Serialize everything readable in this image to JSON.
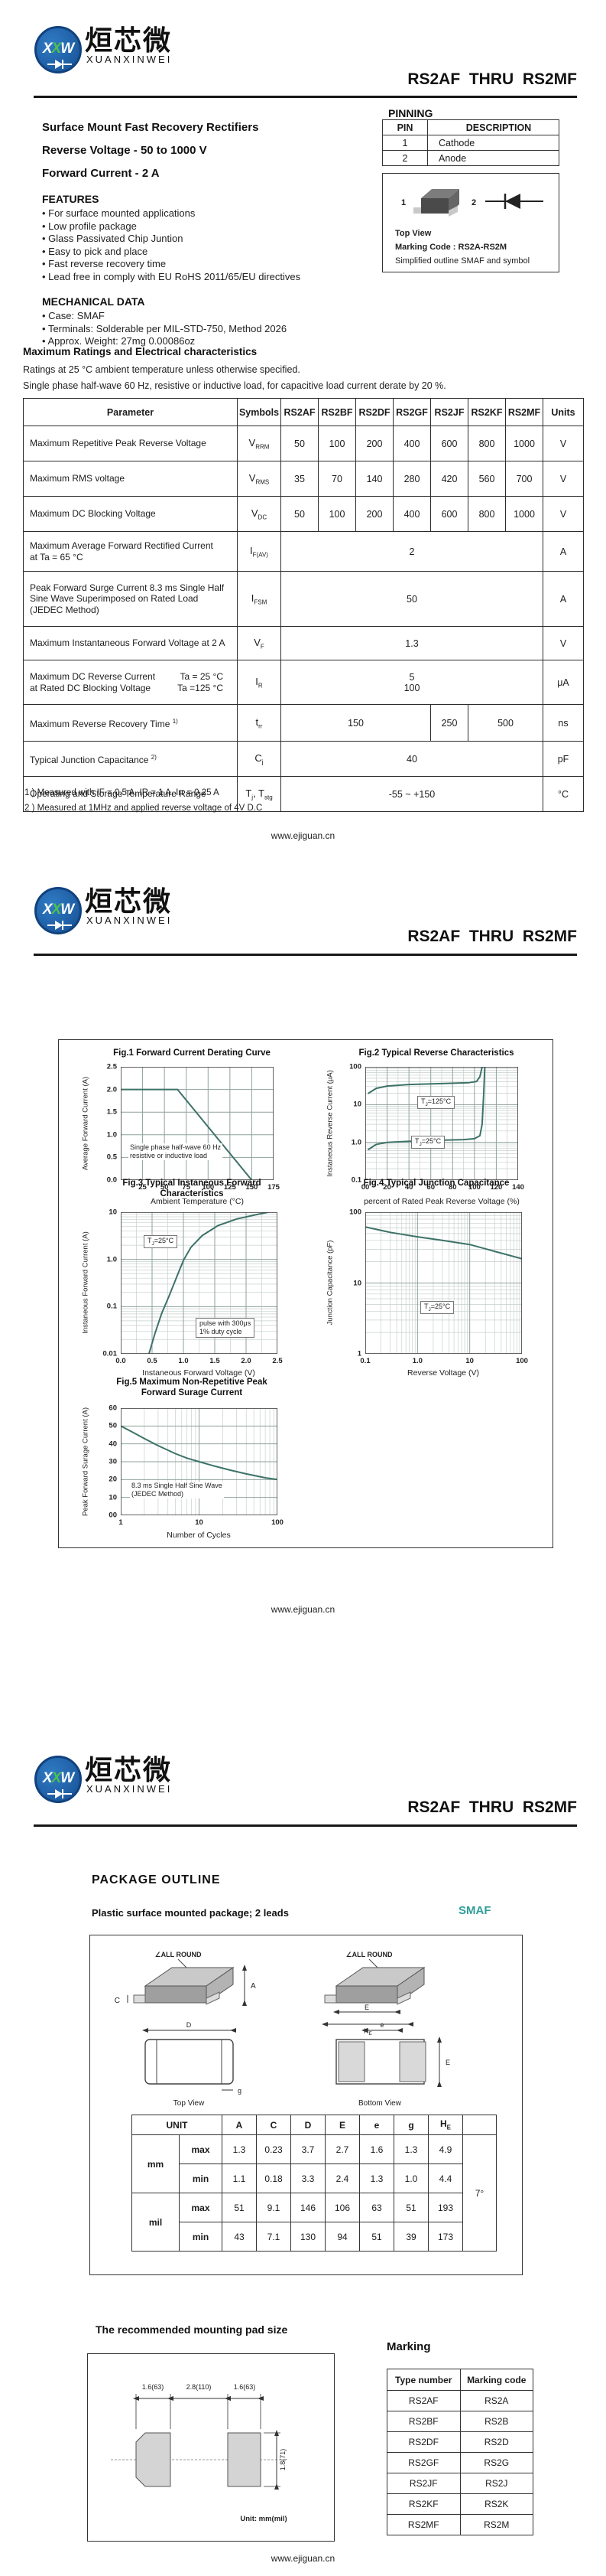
{
  "header": {
    "logo_text": "XXW",
    "logo_cn": "烜芯微",
    "logo_en": "XUANXINWEI",
    "doc_title": "RS2AF  THRU  RS2MF"
  },
  "footer": {
    "url": "www.ejiguan.cn"
  },
  "page1": {
    "product_line1": "Surface Mount Fast Recovery Rectifiers",
    "product_line2": "Reverse Voltage - 50 to 1000 V",
    "product_line3": "Forward Current - 2 A",
    "features_heading": "FEATURES",
    "features": [
      "For surface mounted applications",
      "Low profile package",
      "Glass Passivated Chip Juntion",
      "Easy to pick and place",
      "Fast reverse recovery time",
      "Lead free in comply with EU RoHS 2011/65/EU directives"
    ],
    "mech_heading": "MECHANICAL DATA",
    "mech": [
      "Case: SMAF",
      "Terminals: Solderable per MIL-STD-750, Method 2026",
      "Approx. Weight:  27mg  0.00086oz"
    ],
    "pinning": {
      "heading": "PINNING",
      "col_pin": "PIN",
      "col_desc": "DESCRIPTION",
      "rows": [
        [
          "1",
          "Cathode"
        ],
        [
          "2",
          "Anode"
        ]
      ],
      "pin1": "1",
      "pin2": "2",
      "cap1": "Top View",
      "cap2": "Marking Code :  RS2A-RS2M",
      "cap3": "Simplified outline SMAF and symbol"
    },
    "ratings": {
      "heading": "Maximum Ratings and Electrical characteristics",
      "cond1": "Ratings at 25 °C ambient temperature unless otherwise specified.",
      "cond2": "Single phase half-wave 60 Hz, resistive or inductive load, for capacitive load current derate by 20 %.",
      "col_param": "Parameter",
      "col_sym": "Symbols",
      "col_units": "Units",
      "types": [
        "RS2AF",
        "RS2BF",
        "RS2DF",
        "RS2GF",
        "RS2JF",
        "RS2KF",
        "RS2MF"
      ],
      "rows": [
        {
          "param": "Maximum Repetitive Peak Reverse Voltage",
          "sym": "V",
          "sub": "RRM",
          "values": [
            "50",
            "100",
            "200",
            "400",
            "600",
            "800",
            "1000"
          ],
          "unit": "V"
        },
        {
          "param": "Maximum RMS voltage",
          "sym": "V",
          "sub": "RMS",
          "values": [
            "35",
            "70",
            "140",
            "280",
            "420",
            "560",
            "700"
          ],
          "unit": "V"
        },
        {
          "param": "Maximum DC Blocking Voltage",
          "sym": "V",
          "sub": "DC",
          "values": [
            "50",
            "100",
            "200",
            "400",
            "600",
            "800",
            "1000"
          ],
          "unit": "V"
        },
        {
          "param": "Maximum Average Forward Rectified Current",
          "param2": "at Ta = 65 °C",
          "sym": "I",
          "sub": "F(AV)",
          "value": "2",
          "unit": "A"
        },
        {
          "param": "Peak Forward Surge Current 8.3 ms Single Half Sine Wave Superimposed on Rated Load (JEDEC Method)",
          "sym": "I",
          "sub": "FSM",
          "value": "50",
          "unit": "A"
        },
        {
          "param": "Maximum Instantaneous Forward Voltage at 2 A",
          "sym": "V",
          "sub": "F",
          "value": "1.3",
          "unit": "V"
        },
        {
          "param": "Maximum DC Reverse Current",
          "cond_a": "Ta = 25 °C",
          "param2": "at Rated DC Blocking Voltage",
          "cond_b": "Ta =125 °C",
          "sym": "I",
          "sub": "R",
          "value_a": "5",
          "value_b": "100",
          "unit": "μA"
        },
        {
          "param": "Maximum Reverse Recovery Time",
          "sup": "1)",
          "sym": "t",
          "sub": "rr",
          "value_a": "150",
          "value_b": "250",
          "value_c": "500",
          "unit": "ns"
        },
        {
          "param": "Typical Junction Capacitance",
          "sup": "2)",
          "sym": "C",
          "sub": "j",
          "value": "40",
          "unit": "pF"
        },
        {
          "param": "Operating and Storage Temperature Range",
          "sym": "T",
          "sub": "j",
          "sym2": ", T",
          "sub2": "stg",
          "value": "-55 ~ +150",
          "unit": "°C"
        }
      ],
      "fn1": "1 ) Measured with IF = 0.5 A, IR = 1 A, Irr = 0.25 A",
      "fn2": "2 ) Measured at 1MHz and applied reverse voltage of 4V D.C"
    }
  },
  "chart_data": [
    {
      "id": "fig1",
      "type": "line",
      "title": "Fig.1  Forward Current Derating Curve",
      "xlabel": "Ambient Temperature (°C)",
      "ylabel": "Average Forward Current (A)",
      "xscale": "linear",
      "yscale": "linear",
      "xlim": [
        0,
        175
      ],
      "ylim": [
        0,
        2.5
      ],
      "xticks": [
        {
          "v": 25,
          "label": "25"
        },
        {
          "v": 50,
          "label": "50"
        },
        {
          "v": 75,
          "label": "75"
        },
        {
          "v": 100,
          "label": "100"
        },
        {
          "v": 125,
          "label": "125"
        },
        {
          "v": 150,
          "label": "150"
        },
        {
          "v": 175,
          "label": "175"
        }
      ],
      "yticks": [
        {
          "v": 0,
          "label": "0.0"
        },
        {
          "v": 0.5,
          "label": "0.5"
        },
        {
          "v": 1,
          "label": "1.0"
        },
        {
          "v": 1.5,
          "label": "1.5"
        },
        {
          "v": 2,
          "label": "2.0"
        },
        {
          "v": 2.5,
          "label": "2.5"
        }
      ],
      "series": [
        {
          "name": "derating",
          "points": [
            [
              0,
              2
            ],
            [
              65,
              2
            ],
            [
              150,
              0
            ]
          ]
        }
      ],
      "ann": {
        "l1": "Single phase half-wave 60 Hz",
        "l2": "resistive or inductive load"
      }
    },
    {
      "id": "fig2",
      "type": "line",
      "title": "Fig.2  Typical Reverse Characteristics",
      "xlabel": "percent of Rated  Peak Reverse Voltage (%)",
      "ylabel": "Instaneous Reverse Current (μA)",
      "xscale": "linear",
      "yscale": "log",
      "xlim": [
        0,
        140
      ],
      "ylim": [
        0.1,
        100
      ],
      "xticks": [
        {
          "v": 0,
          "label": "00"
        },
        {
          "v": 20,
          "label": "20"
        },
        {
          "v": 40,
          "label": "40"
        },
        {
          "v": 60,
          "label": "60"
        },
        {
          "v": 80,
          "label": "80"
        },
        {
          "v": 100,
          "label": "100"
        },
        {
          "v": 120,
          "label": "120"
        },
        {
          "v": 140,
          "label": "140"
        }
      ],
      "xminor": [
        10,
        30,
        50,
        70,
        90,
        110,
        130
      ],
      "yticks": [
        {
          "v": 0.1,
          "label": "0.1"
        },
        {
          "v": 1,
          "label": "1.0"
        },
        {
          "v": 10,
          "label": "10"
        },
        {
          "v": 100,
          "label": "100"
        }
      ],
      "series": [
        {
          "name": "TJ=125C",
          "points": [
            [
              3,
              20
            ],
            [
              10,
              27
            ],
            [
              20,
              31
            ],
            [
              40,
              34
            ],
            [
              70,
              36
            ],
            [
              95,
              38
            ],
            [
              102,
              41
            ],
            [
              105,
              55
            ],
            [
              107,
              100
            ]
          ]
        },
        {
          "name": "TJ=25C",
          "points": [
            [
              3,
              0.65
            ],
            [
              10,
              0.88
            ],
            [
              20,
              1.0
            ],
            [
              50,
              1.1
            ],
            [
              90,
              1.18
            ],
            [
              100,
              1.25
            ],
            [
              105,
              1.5
            ],
            [
              107,
              3
            ],
            [
              108.5,
              20
            ],
            [
              109.5,
              100
            ]
          ]
        }
      ],
      "tbox1": {
        "pre": "T",
        "sub": "J",
        "post": "=125°C"
      },
      "tbox2": {
        "pre": "T",
        "sub": "J",
        "post": "=25°C"
      }
    },
    {
      "id": "fig3",
      "type": "line",
      "title": "Fig.3  Typical Instaneous Forward",
      "title2": "Characteristics",
      "xlabel": "Instaneous Forward Voltage (V)",
      "ylabel": "Instaneous Forward Current (A)",
      "xscale": "linear",
      "yscale": "log",
      "xlim": [
        0,
        2.5
      ],
      "ylim": [
        0.01,
        10
      ],
      "xticks": [
        {
          "v": 0,
          "label": "0.0"
        },
        {
          "v": 0.5,
          "label": "0.5"
        },
        {
          "v": 1,
          "label": "1.0"
        },
        {
          "v": 1.5,
          "label": "1.5"
        },
        {
          "v": 2,
          "label": "2.0"
        },
        {
          "v": 2.5,
          "label": "2.5"
        }
      ],
      "xminor": [
        0.25,
        0.75,
        1.25,
        1.75,
        2.25
      ],
      "yticks": [
        {
          "v": 0.01,
          "label": "0.01"
        },
        {
          "v": 0.1,
          "label": "0.1"
        },
        {
          "v": 1,
          "label": "1.0"
        },
        {
          "v": 10,
          "label": "10"
        }
      ],
      "series": [
        {
          "name": "VF",
          "points": [
            [
              0.45,
              0.01
            ],
            [
              0.55,
              0.028
            ],
            [
              0.65,
              0.07
            ],
            [
              0.78,
              0.18
            ],
            [
              0.9,
              0.45
            ],
            [
              1.0,
              0.95
            ],
            [
              1.12,
              1.8
            ],
            [
              1.3,
              3.2
            ],
            [
              1.55,
              5.2
            ],
            [
              1.85,
              7.2
            ],
            [
              2.15,
              8.8
            ],
            [
              2.35,
              10
            ]
          ]
        }
      ],
      "tbox1": {
        "pre": "T",
        "sub": "J",
        "post": "=25°C"
      },
      "ann": {
        "l1": "pulse with 300μs",
        "l2": "1% duty cycle"
      }
    },
    {
      "id": "fig4",
      "type": "line",
      "title": "Fig.4  Typical Junction Capacitance",
      "xlabel": "Reverse  Voltage (V)",
      "ylabel": "Junction Capacitance (pF)",
      "xscale": "log",
      "yscale": "log",
      "xlim": [
        0.1,
        100
      ],
      "ylim": [
        1,
        100
      ],
      "xticks": [
        {
          "v": 0.1,
          "label": "0.1"
        },
        {
          "v": 1,
          "label": "1.0"
        },
        {
          "v": 10,
          "label": "10"
        },
        {
          "v": 100,
          "label": "100"
        }
      ],
      "yticks": [
        {
          "v": 1,
          "label": "1"
        },
        {
          "v": 10,
          "label": "10"
        },
        {
          "v": 100,
          "label": "100"
        }
      ],
      "series": [
        {
          "name": "Cj",
          "points": [
            [
              0.1,
              62
            ],
            [
              0.3,
              52
            ],
            [
              1,
              45
            ],
            [
              3,
              40
            ],
            [
              10,
              35
            ],
            [
              30,
              28
            ],
            [
              100,
              22
            ]
          ]
        }
      ],
      "tbox1": {
        "pre": "T",
        "sub": "J",
        "post": "=25°C"
      }
    },
    {
      "id": "fig5",
      "type": "line",
      "title": "Fig.5  Maximum Non-Repetitive Peak",
      "title2": "Forward Surage Current",
      "xlabel": "Number of Cycles",
      "ylabel": "Peak Forward Surage Current (A)",
      "xscale": "log",
      "yscale": "linear",
      "xlim": [
        1,
        100
      ],
      "ylim": [
        0,
        60
      ],
      "xticks": [
        {
          "v": 1,
          "label": "1"
        },
        {
          "v": 10,
          "label": "10"
        },
        {
          "v": 100,
          "label": "100"
        }
      ],
      "yticks": [
        {
          "v": 0,
          "label": "00"
        },
        {
          "v": 10,
          "label": "10"
        },
        {
          "v": 20,
          "label": "20"
        },
        {
          "v": 30,
          "label": "30"
        },
        {
          "v": 40,
          "label": "40"
        },
        {
          "v": 50,
          "label": "50"
        },
        {
          "v": 60,
          "label": "60"
        }
      ],
      "series": [
        {
          "name": "IFSM",
          "points": [
            [
              1,
              50
            ],
            [
              1.5,
              46
            ],
            [
              2,
              43
            ],
            [
              3,
              39
            ],
            [
              5,
              34.5
            ],
            [
              7,
              32
            ],
            [
              10,
              30
            ],
            [
              15,
              27.8
            ],
            [
              25,
              25.3
            ],
            [
              40,
              23.2
            ],
            [
              70,
              21
            ],
            [
              100,
              20
            ]
          ]
        }
      ],
      "ann": {
        "l1": "8.3 ms Single Half Sine Wave",
        "l2": "(JEDEC Method)"
      }
    }
  ],
  "page3": {
    "outline_heading": "PACKAGE  OUTLINE",
    "outline_sub": "Plastic surface mounted package; 2 leads",
    "package_name": "SMAF",
    "drawing": {
      "all_round": "∠ALL ROUND",
      "top_view": "Top View",
      "bottom_view": "Bottom View",
      "dA": "A",
      "dC": "C",
      "dD": "D",
      "dE": "E",
      "de": "e",
      "dg": "g",
      "dHE_main": "H",
      "dHE_sub": "E"
    },
    "dim_table": {
      "unit": "UNIT",
      "mm": "mm",
      "mil": "mil",
      "max": "max",
      "min": "min",
      "cols": [
        "A",
        "C",
        "D",
        "E",
        "e",
        "g"
      ],
      "he_main": "H",
      "he_sub": "E",
      "angle": "7°",
      "mm_max": [
        "1.3",
        "0.23",
        "3.7",
        "2.7",
        "1.6",
        "1.3",
        "4.9"
      ],
      "mm_min": [
        "1.1",
        "0.18",
        "3.3",
        "2.4",
        "1.3",
        "1.0",
        "4.4"
      ],
      "mil_max": [
        "51",
        "9.1",
        "146",
        "106",
        "63",
        "51",
        "193"
      ],
      "mil_min": [
        "43",
        "7.1",
        "130",
        "94",
        "51",
        "39",
        "173"
      ]
    },
    "pad_heading": "The recommended mounting pad size",
    "pad": {
      "dim_left": "1.6(63)",
      "dim_mid": "2.8(110)",
      "dim_right": "1.6(63)",
      "dim_h": "1.8(71)",
      "unit_note": "Unit:  mm(mil)"
    },
    "marking": {
      "heading": "Marking",
      "col_type": "Type number",
      "col_code": "Marking code",
      "rows": [
        [
          "RS2AF",
          "RS2A"
        ],
        [
          "RS2BF",
          "RS2B"
        ],
        [
          "RS2DF",
          "RS2D"
        ],
        [
          "RS2GF",
          "RS2G"
        ],
        [
          "RS2JF",
          "RS2J"
        ],
        [
          "RS2KF",
          "RS2K"
        ],
        [
          "RS2MF",
          "RS2M"
        ]
      ]
    }
  },
  "colors": {
    "accent_teal": "#2f9e99",
    "curve": "#3d7268",
    "logo_blue": "#1b5ea8",
    "logo_green": "#4cc24c"
  }
}
